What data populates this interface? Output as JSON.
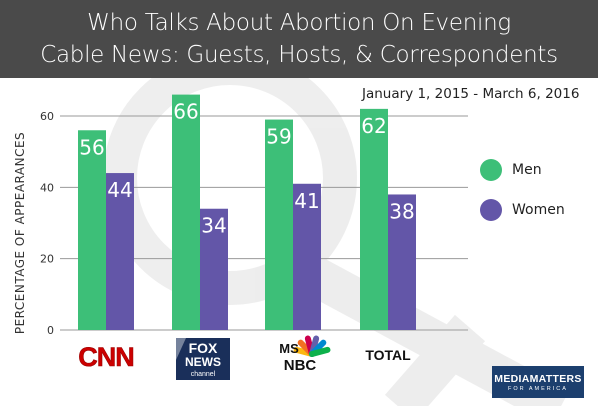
{
  "title": {
    "line1": "Who Talks About Abortion On Evening",
    "line2": "Cable News: Guests, Hosts, & Correspondents"
  },
  "date_range": "January 1, 2015 - March 6, 2016",
  "colors": {
    "men": "#3dbf78",
    "women": "#6356a8",
    "title_bg": "#4a4a4a",
    "logo_bg": "#1c3f6e"
  },
  "legend": [
    {
      "label": "Men",
      "color": "#3dbf78"
    },
    {
      "label": "Women",
      "color": "#6356a8"
    }
  ],
  "footer": {
    "logo_line1": "MEDIAMATTERS",
    "logo_line2": "FOR AMERICA"
  },
  "chart_data": {
    "type": "bar",
    "categories": [
      "CNN",
      "FOX NEWS channel",
      "MSNBC",
      "TOTAL"
    ],
    "category_logos": [
      "cnn-logo",
      "fox-news-logo",
      "msnbc-logo",
      "total-label"
    ],
    "series": [
      {
        "name": "Men",
        "values": [
          56,
          66,
          59,
          62
        ]
      },
      {
        "name": "Women",
        "values": [
          44,
          34,
          41,
          38
        ]
      }
    ],
    "ylabel": "PERCENTAGE OF APPEARANCES",
    "xlabel": "",
    "ylim": [
      0,
      60
    ],
    "yticks": [
      0,
      20,
      40,
      60
    ],
    "grid": true,
    "legend_position": "right",
    "data_labels": true
  }
}
